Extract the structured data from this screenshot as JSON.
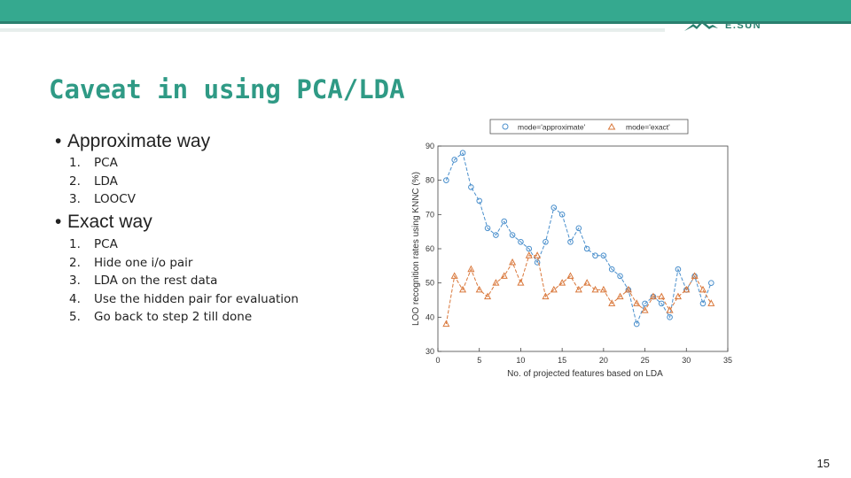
{
  "brand": {
    "logo_text": "E.SUN"
  },
  "slide": {
    "title": "Caveat in using PCA/LDA",
    "sections": [
      {
        "bullet": "•",
        "heading": "Approximate way",
        "items": [
          "PCA",
          "LDA",
          "LOOCV"
        ]
      },
      {
        "bullet": "•",
        "heading": "Exact way",
        "items": [
          "PCA",
          "Hide one i/o pair",
          "LDA on the rest data",
          "Use the hidden pair for evaluation",
          "Go back to step 2 till done"
        ]
      }
    ],
    "page_number": "15"
  },
  "chart_data": {
    "type": "line",
    "title": "",
    "xlabel": "No. of projected features based on LDA",
    "ylabel": "LOO recognition rates using KNNC (%)",
    "xlim": [
      0,
      35
    ],
    "ylim": [
      30,
      90
    ],
    "xticks": [
      0,
      5,
      10,
      15,
      20,
      25,
      30,
      35
    ],
    "yticks": [
      30,
      40,
      50,
      60,
      70,
      80,
      90
    ],
    "legend_position": "top",
    "series": [
      {
        "name": "mode='approximate'",
        "marker": "circle",
        "color": "#4a8fcc",
        "x": [
          1,
          2,
          3,
          4,
          5,
          6,
          7,
          8,
          9,
          10,
          11,
          12,
          13,
          14,
          15,
          16,
          17,
          18,
          19,
          20,
          21,
          22,
          23,
          24,
          25,
          26,
          27,
          28,
          29,
          30,
          31,
          32,
          33
        ],
        "y": [
          80,
          86,
          88,
          78,
          74,
          66,
          64,
          68,
          64,
          62,
          60,
          56,
          62,
          72,
          70,
          62,
          66,
          60,
          58,
          58,
          54,
          52,
          48,
          38,
          44,
          46,
          44,
          40,
          54,
          48,
          52,
          44,
          50
        ]
      },
      {
        "name": "mode='exact'",
        "marker": "triangle",
        "color": "#d9773a",
        "x": [
          1,
          2,
          3,
          4,
          5,
          6,
          7,
          8,
          9,
          10,
          11,
          12,
          13,
          14,
          15,
          16,
          17,
          18,
          19,
          20,
          21,
          22,
          23,
          24,
          25,
          26,
          27,
          28,
          29,
          30,
          31,
          32,
          33
        ],
        "y": [
          38,
          52,
          48,
          54,
          48,
          46,
          50,
          52,
          56,
          50,
          58,
          58,
          46,
          48,
          50,
          52,
          48,
          50,
          48,
          48,
          44,
          46,
          48,
          44,
          42,
          46,
          46,
          42,
          46,
          48,
          52,
          48,
          44
        ]
      }
    ]
  }
}
